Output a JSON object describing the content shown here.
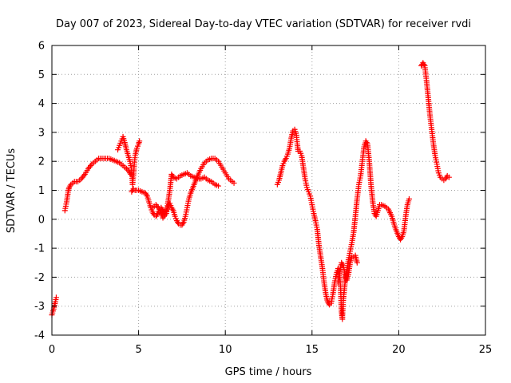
{
  "chart_data": {
    "type": "scatter",
    "title": "Day 007 of 2023, Sidereal Day-to-day VTEC variation (SDTVAR) for receiver rvdi",
    "xlabel": "GPS time / hours",
    "ylabel": "SDTVAR / TECUs",
    "xlim": [
      0,
      25
    ],
    "ylim": [
      -4,
      6
    ],
    "xticks": [
      0,
      5,
      10,
      15,
      20,
      25
    ],
    "yticks": [
      -4,
      -3,
      -2,
      -1,
      0,
      1,
      2,
      3,
      4,
      5,
      6
    ],
    "grid": true,
    "marker": "plus",
    "color": "#ff0000",
    "series": [
      {
        "segments": [
          [
            [
              0.0,
              -3.3
            ],
            [
              0.1,
              -3.1
            ],
            [
              0.2,
              -2.85
            ],
            [
              0.25,
              -2.7
            ]
          ],
          [
            [
              0.75,
              0.3
            ],
            [
              0.8,
              0.45
            ],
            [
              0.85,
              0.6
            ],
            [
              0.9,
              0.8
            ],
            [
              0.95,
              1.0
            ],
            [
              1.0,
              1.1
            ],
            [
              1.1,
              1.2
            ],
            [
              1.2,
              1.25
            ],
            [
              1.3,
              1.3
            ],
            [
              1.5,
              1.3
            ],
            [
              1.7,
              1.4
            ],
            [
              1.9,
              1.55
            ],
            [
              2.1,
              1.75
            ],
            [
              2.3,
              1.9
            ],
            [
              2.5,
              2.0
            ],
            [
              2.7,
              2.1
            ],
            [
              2.9,
              2.1
            ],
            [
              3.1,
              2.1
            ],
            [
              3.3,
              2.1
            ],
            [
              3.5,
              2.05
            ],
            [
              3.7,
              2.0
            ],
            [
              3.9,
              1.95
            ],
            [
              4.1,
              1.85
            ],
            [
              4.3,
              1.75
            ],
            [
              4.45,
              1.65
            ],
            [
              4.55,
              1.55
            ]
          ],
          [
            [
              3.8,
              2.4
            ],
            [
              3.9,
              2.55
            ],
            [
              4.0,
              2.7
            ],
            [
              4.1,
              2.85
            ],
            [
              4.2,
              2.65
            ],
            [
              4.3,
              2.4
            ],
            [
              4.4,
              2.2
            ],
            [
              4.5,
              2.0
            ],
            [
              4.6,
              1.7
            ],
            [
              4.65,
              1.2
            ],
            [
              4.7,
              1.5
            ],
            [
              4.75,
              1.9
            ],
            [
              4.8,
              2.2
            ],
            [
              4.9,
              2.45
            ],
            [
              5.0,
              2.6
            ],
            [
              5.05,
              2.7
            ]
          ],
          [
            [
              4.6,
              0.95
            ],
            [
              4.7,
              1.05
            ],
            [
              4.8,
              1.0
            ],
            [
              5.0,
              1.0
            ],
            [
              5.2,
              0.95
            ],
            [
              5.4,
              0.9
            ],
            [
              5.5,
              0.8
            ],
            [
              5.6,
              0.6
            ],
            [
              5.7,
              0.4
            ],
            [
              5.8,
              0.25
            ],
            [
              5.9,
              0.15
            ],
            [
              6.0,
              0.1
            ],
            [
              6.1,
              0.2
            ],
            [
              6.2,
              0.35
            ],
            [
              6.3,
              0.4
            ],
            [
              6.4,
              0.3
            ],
            [
              6.5,
              0.2
            ],
            [
              6.6,
              0.3
            ],
            [
              6.7,
              0.45
            ],
            [
              6.8,
              0.55
            ],
            [
              6.9,
              0.4
            ],
            [
              7.0,
              0.3
            ],
            [
              7.1,
              0.1
            ],
            [
              7.2,
              -0.05
            ],
            [
              7.3,
              -0.15
            ],
            [
              7.4,
              -0.2
            ],
            [
              7.5,
              -0.2
            ],
            [
              7.6,
              -0.1
            ],
            [
              7.7,
              0.1
            ],
            [
              7.8,
              0.4
            ],
            [
              7.9,
              0.7
            ],
            [
              8.0,
              0.9
            ],
            [
              8.2,
              1.2
            ],
            [
              8.4,
              1.5
            ],
            [
              8.6,
              1.75
            ],
            [
              8.8,
              1.95
            ],
            [
              9.0,
              2.05
            ],
            [
              9.2,
              2.1
            ],
            [
              9.4,
              2.1
            ],
            [
              9.6,
              2.0
            ],
            [
              9.8,
              1.8
            ],
            [
              10.0,
              1.6
            ],
            [
              10.2,
              1.4
            ],
            [
              10.4,
              1.3
            ],
            [
              10.5,
              1.25
            ]
          ],
          [
            [
              5.8,
              0.4
            ],
            [
              6.0,
              0.5
            ],
            [
              6.2,
              0.35
            ],
            [
              6.4,
              0.05
            ],
            [
              6.6,
              0.2
            ],
            [
              6.8,
              1.0
            ],
            [
              6.9,
              1.55
            ],
            [
              7.0,
              1.45
            ],
            [
              7.2,
              1.4
            ],
            [
              7.4,
              1.5
            ],
            [
              7.6,
              1.55
            ],
            [
              7.8,
              1.6
            ],
            [
              8.0,
              1.5
            ],
            [
              8.2,
              1.45
            ],
            [
              8.4,
              1.4
            ],
            [
              8.6,
              1.4
            ],
            [
              8.8,
              1.45
            ],
            [
              9.0,
              1.35
            ],
            [
              9.2,
              1.3
            ],
            [
              9.4,
              1.2
            ],
            [
              9.6,
              1.15
            ]
          ],
          [
            [
              13.0,
              1.2
            ],
            [
              13.1,
              1.35
            ],
            [
              13.2,
              1.6
            ],
            [
              13.3,
              1.85
            ],
            [
              13.4,
              2.0
            ],
            [
              13.5,
              2.1
            ],
            [
              13.6,
              2.25
            ],
            [
              13.7,
              2.45
            ],
            [
              13.8,
              2.8
            ],
            [
              13.9,
              3.05
            ],
            [
              14.0,
              3.1
            ],
            [
              14.1,
              2.9
            ],
            [
              14.15,
              2.6
            ],
            [
              14.2,
              2.35
            ],
            [
              14.3,
              2.35
            ],
            [
              14.4,
              2.2
            ],
            [
              14.5,
              1.8
            ],
            [
              14.6,
              1.4
            ],
            [
              14.7,
              1.1
            ],
            [
              14.8,
              0.95
            ],
            [
              14.9,
              0.8
            ],
            [
              15.0,
              0.5
            ],
            [
              15.1,
              0.2
            ],
            [
              15.2,
              -0.05
            ],
            [
              15.3,
              -0.35
            ],
            [
              15.4,
              -0.9
            ],
            [
              15.5,
              -1.3
            ],
            [
              15.6,
              -1.7
            ],
            [
              15.7,
              -2.2
            ],
            [
              15.8,
              -2.6
            ],
            [
              15.9,
              -2.85
            ],
            [
              16.0,
              -2.95
            ],
            [
              16.1,
              -2.9
            ],
            [
              16.2,
              -2.6
            ],
            [
              16.3,
              -2.2
            ],
            [
              16.4,
              -1.9
            ],
            [
              16.5,
              -1.7
            ],
            [
              16.6,
              -2.0
            ],
            [
              16.65,
              -2.4
            ],
            [
              16.7,
              -3.2
            ],
            [
              16.75,
              -3.45
            ],
            [
              16.8,
              -2.8
            ],
            [
              16.9,
              -2.2
            ],
            [
              17.0,
              -1.8
            ],
            [
              17.1,
              -1.4
            ],
            [
              17.2,
              -1.1
            ],
            [
              17.3,
              -0.8
            ],
            [
              17.4,
              -0.45
            ],
            [
              17.5,
              0.1
            ],
            [
              17.6,
              0.7
            ],
            [
              17.7,
              1.2
            ],
            [
              17.8,
              1.5
            ],
            [
              17.9,
              2.0
            ],
            [
              18.0,
              2.5
            ],
            [
              18.1,
              2.7
            ],
            [
              18.2,
              2.6
            ],
            [
              18.3,
              2.0
            ],
            [
              18.4,
              1.2
            ],
            [
              18.5,
              0.6
            ],
            [
              18.6,
              0.2
            ],
            [
              18.7,
              0.1
            ],
            [
              18.8,
              0.3
            ],
            [
              18.9,
              0.5
            ],
            [
              19.0,
              0.5
            ],
            [
              19.2,
              0.45
            ],
            [
              19.4,
              0.35
            ],
            [
              19.6,
              0.1
            ],
            [
              19.8,
              -0.3
            ],
            [
              20.0,
              -0.6
            ],
            [
              20.1,
              -0.7
            ],
            [
              20.2,
              -0.6
            ],
            [
              20.3,
              -0.4
            ],
            [
              20.4,
              0.1
            ],
            [
              20.5,
              0.5
            ],
            [
              20.6,
              0.7
            ]
          ],
          [
            [
              16.5,
              -2.2
            ],
            [
              16.6,
              -1.8
            ],
            [
              16.7,
              -1.5
            ],
            [
              16.8,
              -1.6
            ],
            [
              16.9,
              -1.9
            ],
            [
              17.0,
              -2.1
            ],
            [
              17.1,
              -1.9
            ],
            [
              17.2,
              -1.5
            ],
            [
              17.3,
              -1.3
            ],
            [
              17.4,
              -1.3
            ],
            [
              17.5,
              -1.25
            ],
            [
              17.6,
              -1.5
            ]
          ],
          [
            [
              21.3,
              5.3
            ],
            [
              21.4,
              5.4
            ],
            [
              21.5,
              5.3
            ],
            [
              21.6,
              4.8
            ],
            [
              21.7,
              4.2
            ],
            [
              21.8,
              3.6
            ],
            [
              21.9,
              3.1
            ],
            [
              22.0,
              2.6
            ],
            [
              22.1,
              2.2
            ],
            [
              22.2,
              1.9
            ],
            [
              22.3,
              1.6
            ],
            [
              22.4,
              1.45
            ],
            [
              22.5,
              1.4
            ],
            [
              22.6,
              1.35
            ],
            [
              22.7,
              1.4
            ],
            [
              22.8,
              1.5
            ],
            [
              22.9,
              1.45
            ]
          ]
        ]
      }
    ]
  }
}
